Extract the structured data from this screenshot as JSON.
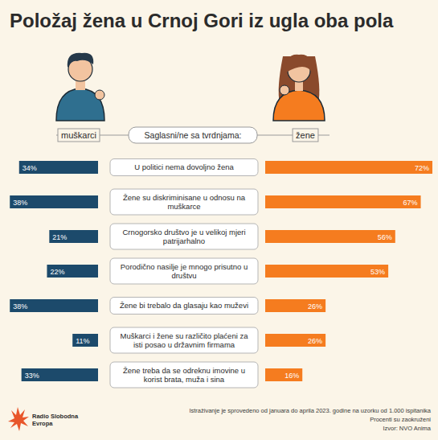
{
  "chart_data": {
    "type": "bar",
    "orientation": "horizontal",
    "title": "Položaj žena u Crnoj Gori iz ugla oba pola",
    "subtitle": "Saglasni/ne sa tvrdnjama:",
    "categories": [
      "U politici nema dovoljno žena",
      "Žene su diskriminisane u odnosu na muškarce",
      "Crnogorsko društvo je u velikoj mjeri patrijarhalno",
      "Porodično nasilje je mnogo prisutno u društvu",
      "Žene bi trebalo da glasaju kao muževi",
      "Muškarci i žene su različito plaćeni za isti posao u državnim firmama",
      "Žene treba da se odreknu imovine u korist brata, muža i sina"
    ],
    "series": [
      {
        "name": "muškarci",
        "color": "#1c4a6b",
        "values": [
          34,
          38,
          21,
          22,
          38,
          11,
          33
        ],
        "value_labels": [
          "34%",
          "38%",
          "21%",
          "22%",
          "38%",
          "11%",
          "33%"
        ]
      },
      {
        "name": "žene",
        "color": "#f57c1f",
        "values": [
          72,
          67,
          56,
          53,
          26,
          26,
          16
        ],
        "value_labels": [
          "72%",
          "67%",
          "56%",
          "53%",
          "26%",
          "26%",
          "16%"
        ]
      }
    ],
    "data_labels": true,
    "tick_labels": false,
    "legend": "top",
    "notes": [
      "Istraživanje je sprovedeno od januara do aprila 2023. godine na uzorku od 1.000 ispitanika",
      "Procenti su zaokruženi",
      "Izvor: NVO Anima"
    ],
    "logo": "Radio Slobodna Evropa"
  }
}
